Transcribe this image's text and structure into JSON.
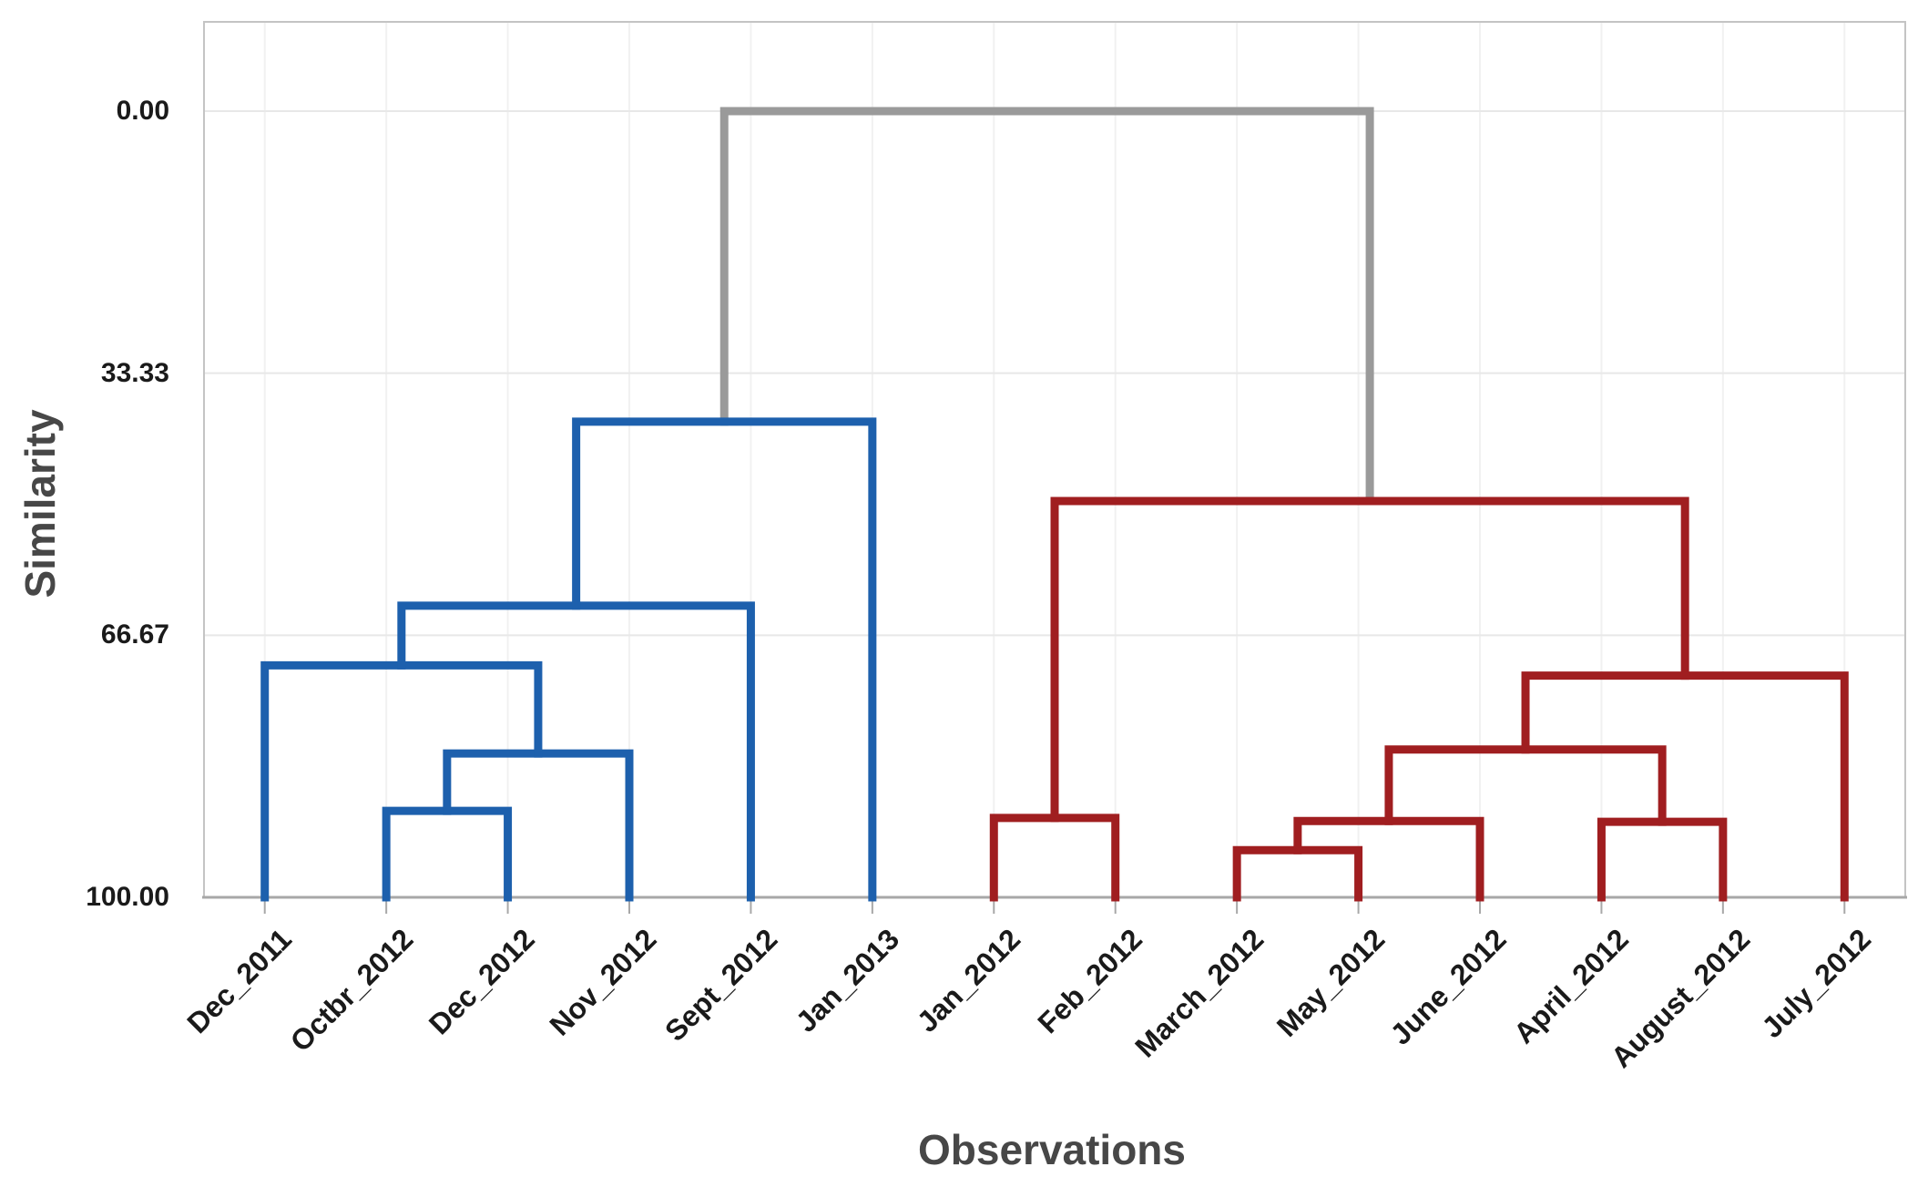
{
  "figure": {
    "background": "#FFFFFF",
    "colors": {
      "cluster_left": "#1D60AD",
      "cluster_right": "#A01E20",
      "root_link": "#9A9A9A",
      "grid_horizontal": "#E8E8E8",
      "grid_vertical": "#F1F1F1",
      "plot_border": "#C4C4C4",
      "axis_line": "#A8A8A8",
      "tick_text": "#1A1A1A",
      "title_text": "#474747"
    },
    "y_axis": {
      "title": "Similarity",
      "tick_labels": [
        "0.00",
        "33.33",
        "66.67",
        "100.00"
      ],
      "tick_values": [
        0,
        33.33,
        66.67,
        100
      ]
    },
    "x_axis": {
      "title": "Observations"
    }
  },
  "chart_data": {
    "type": "dendrogram",
    "orientation": "top-down",
    "title": "",
    "xlabel": "Observations",
    "ylabel": "Similarity",
    "y_axis_range": [
      0,
      100
    ],
    "y_axis_inverted": true,
    "y_tick_values": [
      0,
      33.33,
      66.67,
      100
    ],
    "y_tick_labels": [
      "0.00",
      "33.33",
      "66.67",
      "100.00"
    ],
    "grid": true,
    "legend": false,
    "leaves": [
      "Dec_2011",
      "Octbr_2012",
      "Dec_2012",
      "Nov_2012",
      "Sept_2012",
      "Jan_2013",
      "Jan_2012",
      "Feb_2012",
      "March_2012",
      "May_2012",
      "June_2012",
      "April_2012",
      "August_2012",
      "July_2012"
    ],
    "leaf_cluster": [
      "left",
      "left",
      "left",
      "left",
      "left",
      "left",
      "right",
      "right",
      "right",
      "right",
      "right",
      "right",
      "right",
      "right"
    ],
    "clusters": {
      "left": {
        "color": "#1D60AD",
        "members": [
          "Dec_2011",
          "Octbr_2012",
          "Dec_2012",
          "Nov_2012",
          "Sept_2012",
          "Jan_2013"
        ]
      },
      "right": {
        "color": "#A01E20",
        "members": [
          "Jan_2012",
          "Feb_2012",
          "March_2012",
          "May_2012",
          "June_2012",
          "April_2012",
          "August_2012",
          "July_2012"
        ]
      },
      "root": {
        "color": "#9A9A9A"
      }
    },
    "merges": [
      {
        "id": "M0",
        "a": "L1",
        "b": "L2",
        "similarity": 89.0,
        "cluster": "left"
      },
      {
        "id": "M1",
        "a": "M0",
        "b": "L3",
        "similarity": 81.7,
        "cluster": "left"
      },
      {
        "id": "M2",
        "a": "L0",
        "b": "M1",
        "similarity": 70.5,
        "cluster": "left"
      },
      {
        "id": "M3",
        "a": "M2",
        "b": "L4",
        "similarity": 62.9,
        "cluster": "left"
      },
      {
        "id": "M4",
        "a": "M3",
        "b": "L5",
        "similarity": 39.5,
        "cluster": "left"
      },
      {
        "id": "M5",
        "a": "L8",
        "b": "L9",
        "similarity": 94.0,
        "cluster": "right"
      },
      {
        "id": "M6",
        "a": "L6",
        "b": "L7",
        "similarity": 89.9,
        "cluster": "right"
      },
      {
        "id": "M7",
        "a": "M5",
        "b": "L10",
        "similarity": 90.3,
        "cluster": "right"
      },
      {
        "id": "M8",
        "a": "L11",
        "b": "L12",
        "similarity": 90.4,
        "cluster": "right"
      },
      {
        "id": "M9",
        "a": "M7",
        "b": "M8",
        "similarity": 81.2,
        "cluster": "right"
      },
      {
        "id": "M10",
        "a": "M9",
        "b": "L13",
        "similarity": 71.8,
        "cluster": "right"
      },
      {
        "id": "M11",
        "a": "M6",
        "b": "M10",
        "similarity": 49.6,
        "cluster": "right"
      },
      {
        "id": "M12",
        "a": "M4",
        "b": "M11",
        "similarity": 0.0,
        "cluster": "root"
      }
    ]
  }
}
